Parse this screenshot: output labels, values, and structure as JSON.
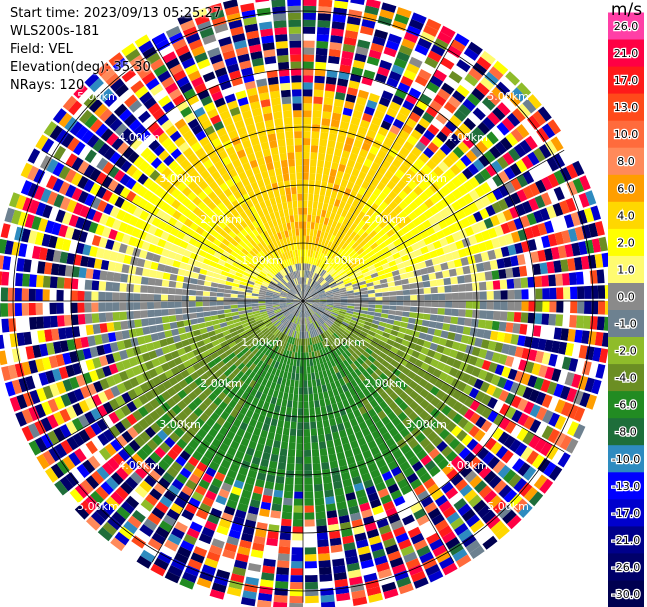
{
  "header": {
    "start_time": "Start time: 2023/09/13 05:25:27",
    "station": "WLS200s-181",
    "field": "Field: VEL",
    "elevation": "Elevation(deg): 35.30",
    "nrays": "NRays: 120"
  },
  "colorbar": {
    "unit": "m/s",
    "ticks": [
      "26.0",
      "21.0",
      "17.0",
      "13.0",
      "10.0",
      "8.0",
      "6.0",
      "4.0",
      "2.0",
      "1.0",
      "0.0",
      "-1.0",
      "-2.0",
      "-4.0",
      "-6.0",
      "-8.0",
      "-10.0",
      "-13.0",
      "-17.0",
      "-21.0",
      "-26.0",
      "-30.0"
    ],
    "colors": [
      "#ff3fa6",
      "#ff0044",
      "#ff1a1a",
      "#ff4a1a",
      "#ff6b3c",
      "#ff8a5a",
      "#ff9e00",
      "#ffd700",
      "#ffff00",
      "#fffb70",
      "#8a8a8a",
      "#6d8190",
      "#8fbc2a",
      "#6b8e23",
      "#228b22",
      "#1e6e3a",
      "#2e8bc0",
      "#0000ff",
      "#0000cd",
      "#00008b",
      "#00006a",
      "#000050"
    ]
  },
  "chart_data": {
    "type": "heatmap",
    "subtype": "polar PPI (plan position indicator)",
    "field": "VEL",
    "units": "m/s",
    "n_rays": 120,
    "range_ring_labels_km": [
      "1.00km",
      "2.00km",
      "3.00km",
      "4.00km",
      "5.00km"
    ],
    "range_rings_km": [
      1,
      2,
      3,
      4,
      5
    ],
    "color_levels": [
      -30,
      -26,
      -21,
      -17,
      -13,
      -10,
      -8,
      -6,
      -4,
      -2,
      -1,
      0,
      1,
      2,
      4,
      6,
      8,
      10,
      13,
      17,
      21,
      26
    ],
    "description_of_pattern": {
      "north_sector_near": "positive 2-6 m/s (yellow/orange)",
      "south_sector_near": "negative -2 to -6 m/s (green)",
      "center": "near 0 (grey)",
      "beyond_3.6km": "noisy, full colour range"
    }
  }
}
